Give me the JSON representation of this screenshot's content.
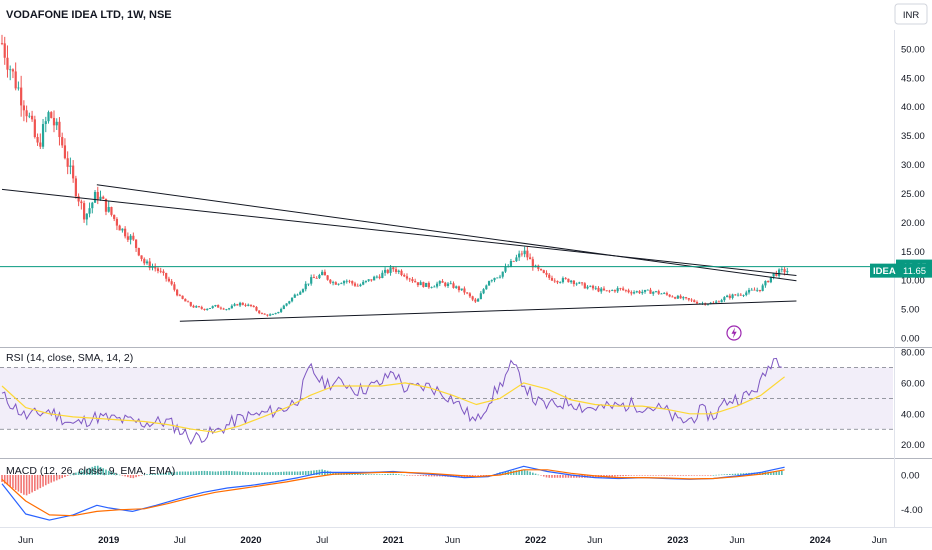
{
  "header": {
    "title": "VODAFONE IDEA LTD, 1W, NSE",
    "currency_button": "INR"
  },
  "colors": {
    "up": "#26a69a",
    "down": "#ef5350",
    "rsi": "#7e57c2",
    "rsi_ma": "#fdd835",
    "macd": "#2962ff",
    "signal": "#ff6d00",
    "hline": "#089981"
  },
  "chart_data": [
    {
      "panel": "price",
      "type": "candlestick",
      "ylim": [
        0,
        55
      ],
      "yticks": [
        "50.00",
        "45.00",
        "40.00",
        "35.00",
        "30.00",
        "25.00",
        "20.00",
        "15.00",
        "10.00",
        "5.00",
        "0.00"
      ],
      "close_series": [
        {
          "x": "2018-04",
          "y": 51
        },
        {
          "x": "2018-05",
          "y": 45
        },
        {
          "x": "2018-06",
          "y": 40
        },
        {
          "x": "2018-07",
          "y": 33
        },
        {
          "x": "2018-08",
          "y": 39
        },
        {
          "x": "2018-09",
          "y": 34
        },
        {
          "x": "2018-10",
          "y": 27
        },
        {
          "x": "2018-11",
          "y": 21
        },
        {
          "x": "2018-12",
          "y": 25
        },
        {
          "x": "2019-01",
          "y": 22
        },
        {
          "x": "2019-02",
          "y": 19
        },
        {
          "x": "2019-03",
          "y": 17
        },
        {
          "x": "2019-04",
          "y": 13
        },
        {
          "x": "2019-05",
          "y": 12
        },
        {
          "x": "2019-06",
          "y": 10
        },
        {
          "x": "2019-07",
          "y": 7
        },
        {
          "x": "2019-08",
          "y": 5.5
        },
        {
          "x": "2019-09",
          "y": 5
        },
        {
          "x": "2019-10",
          "y": 5.5
        },
        {
          "x": "2019-11",
          "y": 5
        },
        {
          "x": "2019-12",
          "y": 6
        },
        {
          "x": "2020-01",
          "y": 5.5
        },
        {
          "x": "2020-02",
          "y": 4
        },
        {
          "x": "2020-03",
          "y": 4
        },
        {
          "x": "2020-04",
          "y": 6
        },
        {
          "x": "2020-05",
          "y": 8
        },
        {
          "x": "2020-06",
          "y": 10
        },
        {
          "x": "2020-07",
          "y": 11
        },
        {
          "x": "2020-08",
          "y": 9.5
        },
        {
          "x": "2020-09",
          "y": 10
        },
        {
          "x": "2020-10",
          "y": 9
        },
        {
          "x": "2020-11",
          "y": 10
        },
        {
          "x": "2020-12",
          "y": 11
        },
        {
          "x": "2021-01",
          "y": 12
        },
        {
          "x": "2021-02",
          "y": 11
        },
        {
          "x": "2021-03",
          "y": 9.5
        },
        {
          "x": "2021-04",
          "y": 9
        },
        {
          "x": "2021-05",
          "y": 9.5
        },
        {
          "x": "2021-06",
          "y": 9
        },
        {
          "x": "2021-07",
          "y": 8
        },
        {
          "x": "2021-08",
          "y": 6
        },
        {
          "x": "2021-09",
          "y": 10
        },
        {
          "x": "2021-10",
          "y": 11
        },
        {
          "x": "2021-11",
          "y": 13
        },
        {
          "x": "2021-12",
          "y": 15
        },
        {
          "x": "2022-01",
          "y": 12
        },
        {
          "x": "2022-02",
          "y": 10.5
        },
        {
          "x": "2022-03",
          "y": 10
        },
        {
          "x": "2022-04",
          "y": 10
        },
        {
          "x": "2022-05",
          "y": 9
        },
        {
          "x": "2022-06",
          "y": 8.5
        },
        {
          "x": "2022-07",
          "y": 8
        },
        {
          "x": "2022-08",
          "y": 8.5
        },
        {
          "x": "2022-09",
          "y": 8
        },
        {
          "x": "2022-10",
          "y": 8
        },
        {
          "x": "2022-11",
          "y": 8
        },
        {
          "x": "2022-12",
          "y": 7.5
        },
        {
          "x": "2023-01",
          "y": 7
        },
        {
          "x": "2023-02",
          "y": 6.5
        },
        {
          "x": "2023-03",
          "y": 6
        },
        {
          "x": "2023-04",
          "y": 6
        },
        {
          "x": "2023-05",
          "y": 7
        },
        {
          "x": "2023-06",
          "y": 7.5
        },
        {
          "x": "2023-07",
          "y": 8
        },
        {
          "x": "2023-08",
          "y": 8.5
        },
        {
          "x": "2023-09",
          "y": 11
        },
        {
          "x": "2023-10",
          "y": 11.65
        }
      ],
      "trendlines": [
        {
          "from": {
            "x": "2018-04",
            "y": 25.7
          },
          "to": {
            "x": "2023-11",
            "y": 10.8
          }
        },
        {
          "from": {
            "x": "2018-12",
            "y": 26.5
          },
          "to": {
            "x": "2023-11",
            "y": 9.9
          }
        },
        {
          "from": {
            "x": "2019-07",
            "y": 2.9
          },
          "to": {
            "x": "2023-11",
            "y": 6.4
          }
        }
      ],
      "hline": {
        "y": 12.35,
        "label": "12.35"
      },
      "last_price": {
        "symbol": "IDEA",
        "value": "11.65"
      }
    },
    {
      "panel": "rsi",
      "type": "line",
      "title": "RSI (14, close, SMA, 14, 2)",
      "ylim": [
        12,
        82
      ],
      "yticks": [
        "80.00",
        "60.00",
        "40.00",
        "20.00"
      ],
      "band": [
        30,
        70
      ],
      "mid": 50,
      "series": [
        {
          "x": "2018-04",
          "y": 52
        },
        {
          "x": "2018-06",
          "y": 38
        },
        {
          "x": "2018-08",
          "y": 42
        },
        {
          "x": "2018-10",
          "y": 33
        },
        {
          "x": "2018-12",
          "y": 38
        },
        {
          "x": "2019-02",
          "y": 36
        },
        {
          "x": "2019-04",
          "y": 34
        },
        {
          "x": "2019-06",
          "y": 35
        },
        {
          "x": "2019-08",
          "y": 24
        },
        {
          "x": "2019-10",
          "y": 28
        },
        {
          "x": "2019-12",
          "y": 37
        },
        {
          "x": "2020-02",
          "y": 40
        },
        {
          "x": "2020-04",
          "y": 44
        },
        {
          "x": "2020-05",
          "y": 50
        },
        {
          "x": "2020-06",
          "y": 70
        },
        {
          "x": "2020-07",
          "y": 60
        },
        {
          "x": "2020-09",
          "y": 60
        },
        {
          "x": "2020-10",
          "y": 55
        },
        {
          "x": "2020-12",
          "y": 60
        },
        {
          "x": "2021-01",
          "y": 68
        },
        {
          "x": "2021-02",
          "y": 56
        },
        {
          "x": "2021-04",
          "y": 58
        },
        {
          "x": "2021-06",
          "y": 50
        },
        {
          "x": "2021-08",
          "y": 34
        },
        {
          "x": "2021-09",
          "y": 48
        },
        {
          "x": "2021-10",
          "y": 58
        },
        {
          "x": "2021-11",
          "y": 72
        },
        {
          "x": "2021-12",
          "y": 60
        },
        {
          "x": "2022-01",
          "y": 48
        },
        {
          "x": "2022-02",
          "y": 45
        },
        {
          "x": "2022-04",
          "y": 48
        },
        {
          "x": "2022-05",
          "y": 44
        },
        {
          "x": "2022-07",
          "y": 44
        },
        {
          "x": "2022-09",
          "y": 46
        },
        {
          "x": "2022-11",
          "y": 44
        },
        {
          "x": "2022-12",
          "y": 42
        },
        {
          "x": "2023-01",
          "y": 35
        },
        {
          "x": "2023-02",
          "y": 36
        },
        {
          "x": "2023-03",
          "y": 42
        },
        {
          "x": "2023-04",
          "y": 38
        },
        {
          "x": "2023-05",
          "y": 48
        },
        {
          "x": "2023-06",
          "y": 50
        },
        {
          "x": "2023-07",
          "y": 52
        },
        {
          "x": "2023-08",
          "y": 60
        },
        {
          "x": "2023-09",
          "y": 76
        },
        {
          "x": "2023-10",
          "y": 74
        }
      ],
      "ma_series": [
        {
          "x": "2018-04",
          "y": 58
        },
        {
          "x": "2018-06",
          "y": 44
        },
        {
          "x": "2018-08",
          "y": 40
        },
        {
          "x": "2018-10",
          "y": 38
        },
        {
          "x": "2018-12",
          "y": 37
        },
        {
          "x": "2019-02",
          "y": 36
        },
        {
          "x": "2019-04",
          "y": 35
        },
        {
          "x": "2019-06",
          "y": 33
        },
        {
          "x": "2019-08",
          "y": 30
        },
        {
          "x": "2019-10",
          "y": 28
        },
        {
          "x": "2019-12",
          "y": 32
        },
        {
          "x": "2020-02",
          "y": 38
        },
        {
          "x": "2020-04",
          "y": 44
        },
        {
          "x": "2020-06",
          "y": 52
        },
        {
          "x": "2020-08",
          "y": 58
        },
        {
          "x": "2020-10",
          "y": 58
        },
        {
          "x": "2020-12",
          "y": 58
        },
        {
          "x": "2021-02",
          "y": 60
        },
        {
          "x": "2021-04",
          "y": 57
        },
        {
          "x": "2021-06",
          "y": 52
        },
        {
          "x": "2021-08",
          "y": 46
        },
        {
          "x": "2021-10",
          "y": 50
        },
        {
          "x": "2021-12",
          "y": 60
        },
        {
          "x": "2022-02",
          "y": 56
        },
        {
          "x": "2022-04",
          "y": 49
        },
        {
          "x": "2022-06",
          "y": 46
        },
        {
          "x": "2022-08",
          "y": 45
        },
        {
          "x": "2022-10",
          "y": 45
        },
        {
          "x": "2022-12",
          "y": 43
        },
        {
          "x": "2023-02",
          "y": 40
        },
        {
          "x": "2023-04",
          "y": 40
        },
        {
          "x": "2023-06",
          "y": 45
        },
        {
          "x": "2023-08",
          "y": 52
        },
        {
          "x": "2023-10",
          "y": 64
        }
      ]
    },
    {
      "panel": "macd",
      "type": "line",
      "title": "MACD (12, 26, close, 9, EMA, EMA)",
      "ylim": [
        -6,
        1.5
      ],
      "yticks": [
        "0.00",
        "-4.00"
      ],
      "macd_series": [
        {
          "x": "2018-04",
          "y": -1
        },
        {
          "x": "2018-06",
          "y": -4.5
        },
        {
          "x": "2018-08",
          "y": -5.2
        },
        {
          "x": "2018-10",
          "y": -4.6
        },
        {
          "x": "2018-12",
          "y": -3.5
        },
        {
          "x": "2019-01",
          "y": -3.8
        },
        {
          "x": "2019-03",
          "y": -4.2
        },
        {
          "x": "2019-05",
          "y": -3.5
        },
        {
          "x": "2019-07",
          "y": -2.7
        },
        {
          "x": "2019-09",
          "y": -2
        },
        {
          "x": "2019-11",
          "y": -1.5
        },
        {
          "x": "2020-01",
          "y": -1.2
        },
        {
          "x": "2020-03",
          "y": -0.8
        },
        {
          "x": "2020-05",
          "y": -0.3
        },
        {
          "x": "2020-07",
          "y": 0.3
        },
        {
          "x": "2020-09",
          "y": 0.3
        },
        {
          "x": "2020-11",
          "y": 0.3
        },
        {
          "x": "2021-01",
          "y": 0.4
        },
        {
          "x": "2021-03",
          "y": 0.2
        },
        {
          "x": "2021-05",
          "y": 0
        },
        {
          "x": "2021-07",
          "y": -0.3
        },
        {
          "x": "2021-09",
          "y": -0.2
        },
        {
          "x": "2021-11",
          "y": 0.6
        },
        {
          "x": "2021-12",
          "y": 1
        },
        {
          "x": "2022-02",
          "y": 0.4
        },
        {
          "x": "2022-04",
          "y": 0
        },
        {
          "x": "2022-06",
          "y": -0.3
        },
        {
          "x": "2022-08",
          "y": -0.4
        },
        {
          "x": "2022-10",
          "y": -0.3
        },
        {
          "x": "2022-12",
          "y": -0.4
        },
        {
          "x": "2023-02",
          "y": -0.5
        },
        {
          "x": "2023-04",
          "y": -0.4
        },
        {
          "x": "2023-06",
          "y": -0.1
        },
        {
          "x": "2023-08",
          "y": 0.3
        },
        {
          "x": "2023-10",
          "y": 0.9
        }
      ],
      "signal_series": [
        {
          "x": "2018-04",
          "y": -0.5
        },
        {
          "x": "2018-06",
          "y": -3
        },
        {
          "x": "2018-08",
          "y": -4.6
        },
        {
          "x": "2018-10",
          "y": -4.7
        },
        {
          "x": "2018-12",
          "y": -4.2
        },
        {
          "x": "2019-02",
          "y": -4
        },
        {
          "x": "2019-04",
          "y": -3.9
        },
        {
          "x": "2019-06",
          "y": -3.3
        },
        {
          "x": "2019-08",
          "y": -2.6
        },
        {
          "x": "2019-10",
          "y": -2
        },
        {
          "x": "2019-12",
          "y": -1.6
        },
        {
          "x": "2020-02",
          "y": -1.2
        },
        {
          "x": "2020-04",
          "y": -0.8
        },
        {
          "x": "2020-06",
          "y": -0.3
        },
        {
          "x": "2020-08",
          "y": 0.1
        },
        {
          "x": "2020-10",
          "y": 0.2
        },
        {
          "x": "2020-12",
          "y": 0.3
        },
        {
          "x": "2021-02",
          "y": 0.3
        },
        {
          "x": "2021-04",
          "y": 0.2
        },
        {
          "x": "2021-06",
          "y": 0
        },
        {
          "x": "2021-08",
          "y": -0.2
        },
        {
          "x": "2021-10",
          "y": 0
        },
        {
          "x": "2021-12",
          "y": 0.6
        },
        {
          "x": "2022-02",
          "y": 0.6
        },
        {
          "x": "2022-04",
          "y": 0.2
        },
        {
          "x": "2022-06",
          "y": -0.1
        },
        {
          "x": "2022-08",
          "y": -0.3
        },
        {
          "x": "2022-10",
          "y": -0.3
        },
        {
          "x": "2022-12",
          "y": -0.35
        },
        {
          "x": "2023-02",
          "y": -0.45
        },
        {
          "x": "2023-04",
          "y": -0.4
        },
        {
          "x": "2023-06",
          "y": -0.2
        },
        {
          "x": "2023-08",
          "y": 0.1
        },
        {
          "x": "2023-10",
          "y": 0.6
        }
      ]
    }
  ],
  "xaxis": {
    "ticks": [
      {
        "x": "2018-06",
        "label": "Jun",
        "bold": false
      },
      {
        "x": "2019-01",
        "label": "2019",
        "bold": true
      },
      {
        "x": "2019-07",
        "label": "Jul",
        "bold": false
      },
      {
        "x": "2020-01",
        "label": "2020",
        "bold": true
      },
      {
        "x": "2020-07",
        "label": "Jul",
        "bold": false
      },
      {
        "x": "2021-01",
        "label": "2021",
        "bold": true
      },
      {
        "x": "2021-06",
        "label": "Jun",
        "bold": false
      },
      {
        "x": "2022-01",
        "label": "2022",
        "bold": true
      },
      {
        "x": "2022-06",
        "label": "Jun",
        "bold": false
      },
      {
        "x": "2023-01",
        "label": "2023",
        "bold": true
      },
      {
        "x": "2023-06",
        "label": "Jun",
        "bold": false
      },
      {
        "x": "2024-01",
        "label": "2024",
        "bold": true
      },
      {
        "x": "2024-06",
        "label": "Jun",
        "bold": false
      }
    ]
  }
}
